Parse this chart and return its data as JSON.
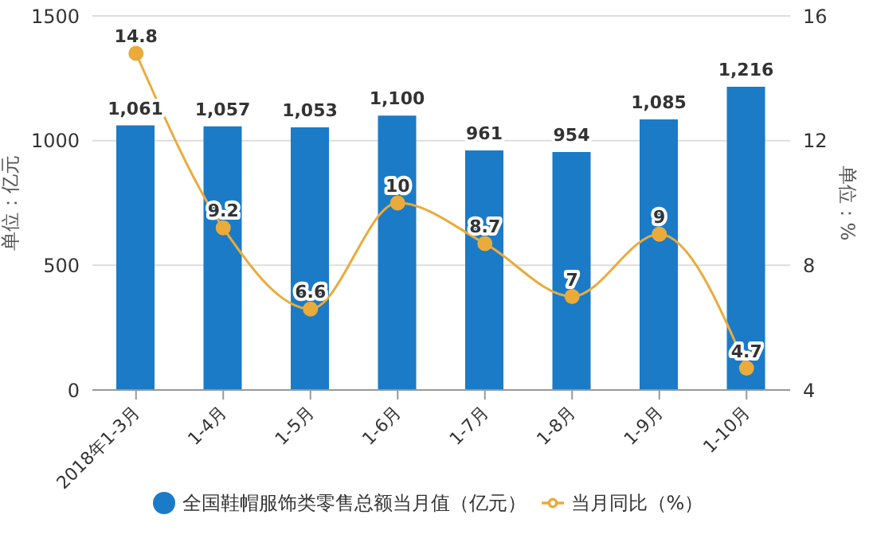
{
  "chart_data": {
    "type": "bar",
    "categories": [
      "2018年1-3月",
      "1-4月",
      "1-5月",
      "1-6月",
      "1-7月",
      "1-8月",
      "1-9月",
      "1-10月"
    ],
    "series": [
      {
        "name": "全国鞋帽服饰类零售总额当月值（亿元）",
        "color": "#1b7bc6",
        "values": [
          1061,
          1057,
          1053,
          1100,
          961,
          954,
          1085,
          1216
        ],
        "value_labels": [
          "1,061",
          "1,057",
          "1,053",
          "1,100",
          "961",
          "954",
          "1,085",
          "1,216"
        ]
      },
      {
        "name": "当月同比（%）",
        "type": "line",
        "axis": "y2",
        "color": "#eaab3b",
        "values": [
          14.8,
          9.2,
          6.6,
          10,
          8.7,
          7,
          9,
          4.7
        ],
        "value_labels": [
          "14.8",
          "9.2",
          "6.6",
          "10",
          "8.7",
          "7",
          "9",
          "4.7"
        ]
      }
    ],
    "ylabel": "单位：亿元",
    "y2label": "单位：%",
    "ylim": [
      0,
      1500
    ],
    "yticks": [
      0,
      500,
      1000,
      1500
    ],
    "y2lim": [
      4,
      16
    ],
    "y2ticks": [
      4,
      8,
      12,
      16
    ],
    "grid": "y",
    "legend": "bottom",
    "marker": "circle"
  }
}
